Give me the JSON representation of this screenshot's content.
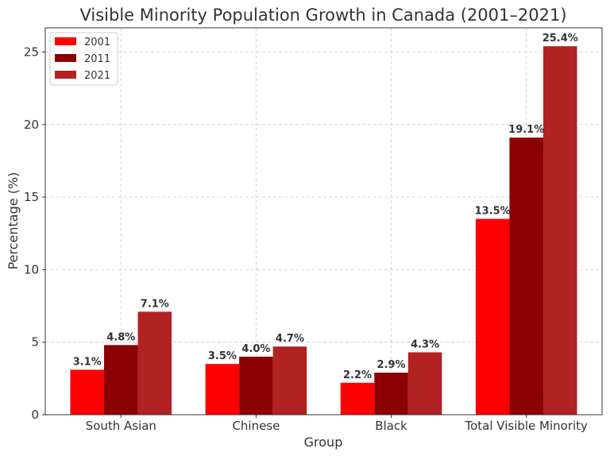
{
  "chart_data": {
    "type": "bar",
    "title": "Visible Minority Population Growth in Canada (2001–2021)",
    "xlabel": "Group",
    "ylabel": "Percentage (%)",
    "categories": [
      "South Asian",
      "Chinese",
      "Black",
      "Total Visible Minority"
    ],
    "series": [
      {
        "name": "2001",
        "color": "#ff0000",
        "values": [
          3.1,
          3.5,
          2.2,
          13.5
        ],
        "labels": [
          "3.1%",
          "3.5%",
          "2.2%",
          "13.5%"
        ]
      },
      {
        "name": "2011",
        "color": "#8b0000",
        "values": [
          4.8,
          4.0,
          2.9,
          19.1
        ],
        "labels": [
          "4.8%",
          "4.0%",
          "2.9%",
          "19.1%"
        ]
      },
      {
        "name": "2021",
        "color": "#b22222",
        "values": [
          7.1,
          4.7,
          4.3,
          25.4
        ],
        "labels": [
          "7.1%",
          "4.7%",
          "4.3%",
          "25.4%"
        ]
      }
    ],
    "ylim": [
      0,
      26.67
    ],
    "yticks": [
      0,
      5,
      10,
      15,
      20,
      25
    ],
    "grid": true,
    "legend_position": "top-left"
  }
}
